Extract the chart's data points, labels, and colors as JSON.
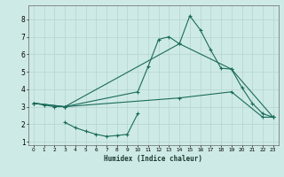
{
  "xlabel": "Humidex (Indice chaleur)",
  "bg_color": "#ceeae6",
  "grid_color": "#b8d8d4",
  "line_color": "#1a6b5a",
  "xlim": [
    -0.5,
    23.5
  ],
  "ylim": [
    0.8,
    8.8
  ],
  "xticks": [
    0,
    1,
    2,
    3,
    4,
    5,
    6,
    7,
    8,
    9,
    10,
    11,
    12,
    13,
    14,
    15,
    16,
    17,
    18,
    19,
    20,
    21,
    22,
    23
  ],
  "yticks": [
    1,
    2,
    3,
    4,
    5,
    6,
    7,
    8
  ],
  "series": [
    {
      "x": [
        0,
        1,
        2,
        3,
        10,
        11,
        12,
        13,
        14,
        15,
        16,
        17,
        18,
        19,
        20,
        21,
        22,
        23
      ],
      "y": [
        3.2,
        3.1,
        3.0,
        3.0,
        3.85,
        5.3,
        6.85,
        7.0,
        6.6,
        8.2,
        7.4,
        6.25,
        5.2,
        5.15,
        4.1,
        3.2,
        2.6,
        2.4
      ]
    },
    {
      "x": [
        0,
        3,
        14,
        19,
        23
      ],
      "y": [
        3.2,
        3.0,
        6.6,
        5.15,
        2.4
      ]
    },
    {
      "x": [
        0,
        3,
        14,
        19,
        22,
        23
      ],
      "y": [
        3.2,
        3.0,
        3.5,
        3.85,
        2.4,
        2.4
      ]
    },
    {
      "x": [
        3,
        4,
        5,
        6,
        7,
        8,
        9,
        10
      ],
      "y": [
        2.1,
        1.8,
        1.6,
        1.42,
        1.3,
        1.35,
        1.42,
        2.6
      ]
    }
  ]
}
